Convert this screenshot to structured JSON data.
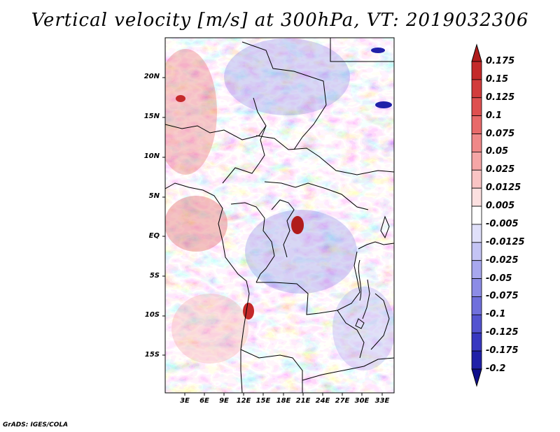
{
  "title": "Vertical velocity [m/s] at 300hPa, VT: 2019032306",
  "credit": "GrADS: IGES/COLA",
  "map": {
    "variable": "Vertical velocity",
    "units": "m/s",
    "level": "300hPa",
    "valid_time": "2019032306",
    "lat_labels": [
      "20N",
      "15N",
      "10N",
      "5N",
      "EQ",
      "5S",
      "10S",
      "15S"
    ],
    "lon_labels": [
      "3E",
      "6E",
      "9E",
      "12E",
      "15E",
      "18E",
      "21E",
      "24E",
      "27E",
      "30E",
      "33E"
    ]
  },
  "colorbar": {
    "levels": [
      "0.175",
      "0.15",
      "0.125",
      "0.1",
      "0.075",
      "0.05",
      "0.025",
      "0.0125",
      "0.005",
      "-0.005",
      "-0.0125",
      "-0.025",
      "-0.05",
      "-0.075",
      "-0.1",
      "-0.125",
      "-0.175",
      "-0.2"
    ],
    "colors": [
      "#b01c1c",
      "#c42a2a",
      "#d23c3c",
      "#de5050",
      "#e86a6a",
      "#ef8888",
      "#f5a6a6",
      "#f9c4c4",
      "#fce0e0",
      "#ffffff",
      "#e0e0fa",
      "#c4c4f4",
      "#a8a8ee",
      "#8c8ce6",
      "#7070dc",
      "#5454d0",
      "#3838c0",
      "#2020a8",
      "#10108c"
    ]
  }
}
